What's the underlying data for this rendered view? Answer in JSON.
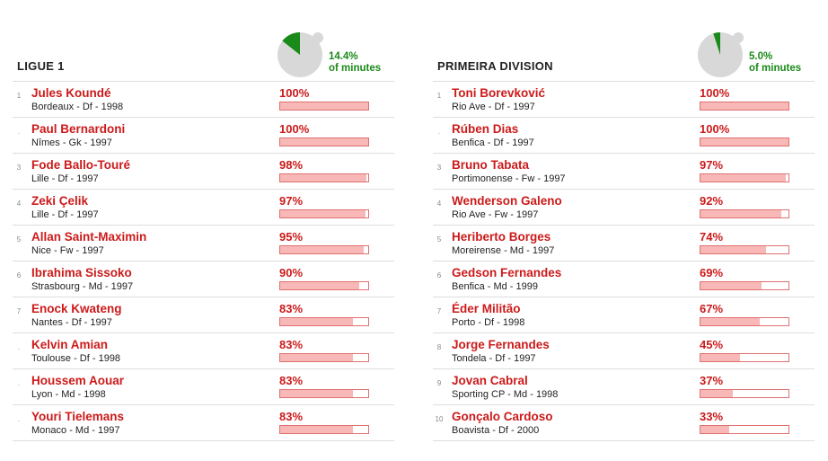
{
  "chart_data": [
    {
      "type": "table",
      "title": "LIGUE 1",
      "summary": {
        "value": 14.4,
        "label_value": "14.4%",
        "label_text": "of minutes"
      },
      "rows": [
        {
          "rank": "1",
          "name": "Jules Koundé",
          "info": "Bordeaux - Df - 1998",
          "value": 100,
          "label": "100%"
        },
        {
          "rank": ".",
          "name": "Paul Bernardoni",
          "info": "Nîmes - Gk - 1997",
          "value": 100,
          "label": "100%"
        },
        {
          "rank": "3",
          "name": "Fode Ballo-Touré",
          "info": "Lille - Df - 1997",
          "value": 98,
          "label": "98%"
        },
        {
          "rank": "4",
          "name": "Zeki Çelik",
          "info": "Lille - Df - 1997",
          "value": 97,
          "label": "97%"
        },
        {
          "rank": "5",
          "name": "Allan Saint-Maximin",
          "info": "Nice - Fw - 1997",
          "value": 95,
          "label": "95%"
        },
        {
          "rank": "6",
          "name": "Ibrahima Sissoko",
          "info": "Strasbourg - Md - 1997",
          "value": 90,
          "label": "90%"
        },
        {
          "rank": "7",
          "name": "Enock Kwateng",
          "info": "Nantes - Df - 1997",
          "value": 83,
          "label": "83%"
        },
        {
          "rank": ".",
          "name": "Kelvin Amian",
          "info": "Toulouse - Df - 1998",
          "value": 83,
          "label": "83%"
        },
        {
          "rank": ".",
          "name": "Houssem Aouar",
          "info": "Lyon - Md - 1998",
          "value": 83,
          "label": "83%"
        },
        {
          "rank": ".",
          "name": "Youri Tielemans",
          "info": "Monaco - Md - 1997",
          "value": 83,
          "label": "83%"
        }
      ]
    },
    {
      "type": "table",
      "title": "PRIMEIRA DIVISION",
      "summary": {
        "value": 5.0,
        "label_value": "5.0%",
        "label_text": "of minutes"
      },
      "rows": [
        {
          "rank": "1",
          "name": "Toni Borevković",
          "info": "Rio Ave - Df - 1997",
          "value": 100,
          "label": "100%"
        },
        {
          "rank": ".",
          "name": "Rúben Dias",
          "info": "Benfica - Df - 1997",
          "value": 100,
          "label": "100%"
        },
        {
          "rank": "3",
          "name": "Bruno Tabata",
          "info": "Portimonense - Fw - 1997",
          "value": 97,
          "label": "97%"
        },
        {
          "rank": "4",
          "name": "Wenderson Galeno",
          "info": "Rio Ave - Fw - 1997",
          "value": 92,
          "label": "92%"
        },
        {
          "rank": "5",
          "name": "Heriberto Borges",
          "info": "Moreirense - Md - 1997",
          "value": 74,
          "label": "74%"
        },
        {
          "rank": "6",
          "name": "Gedson Fernandes",
          "info": "Benfica - Md - 1999",
          "value": 69,
          "label": "69%"
        },
        {
          "rank": "7",
          "name": "Éder Militão",
          "info": "Porto - Df - 1998",
          "value": 67,
          "label": "67%"
        },
        {
          "rank": "8",
          "name": "Jorge Fernandes",
          "info": "Tondela - Df - 1997",
          "value": 45,
          "label": "45%"
        },
        {
          "rank": "9",
          "name": "Jovan Cabral",
          "info": "Sporting CP - Md - 1998",
          "value": 37,
          "label": "37%"
        },
        {
          "rank": "10",
          "name": "Gonçalo Cardoso",
          "info": "Boavista - Df - 2000",
          "value": 33,
          "label": "33%"
        }
      ]
    }
  ],
  "colors": {
    "name": "#cc1a1a",
    "bar_fill": "#f8b8b8",
    "bar_border": "#e07070",
    "gauge_bg": "#d8d8d8",
    "gauge_fill": "#1a8a1a",
    "summary_text": "#1a8a1a"
  }
}
